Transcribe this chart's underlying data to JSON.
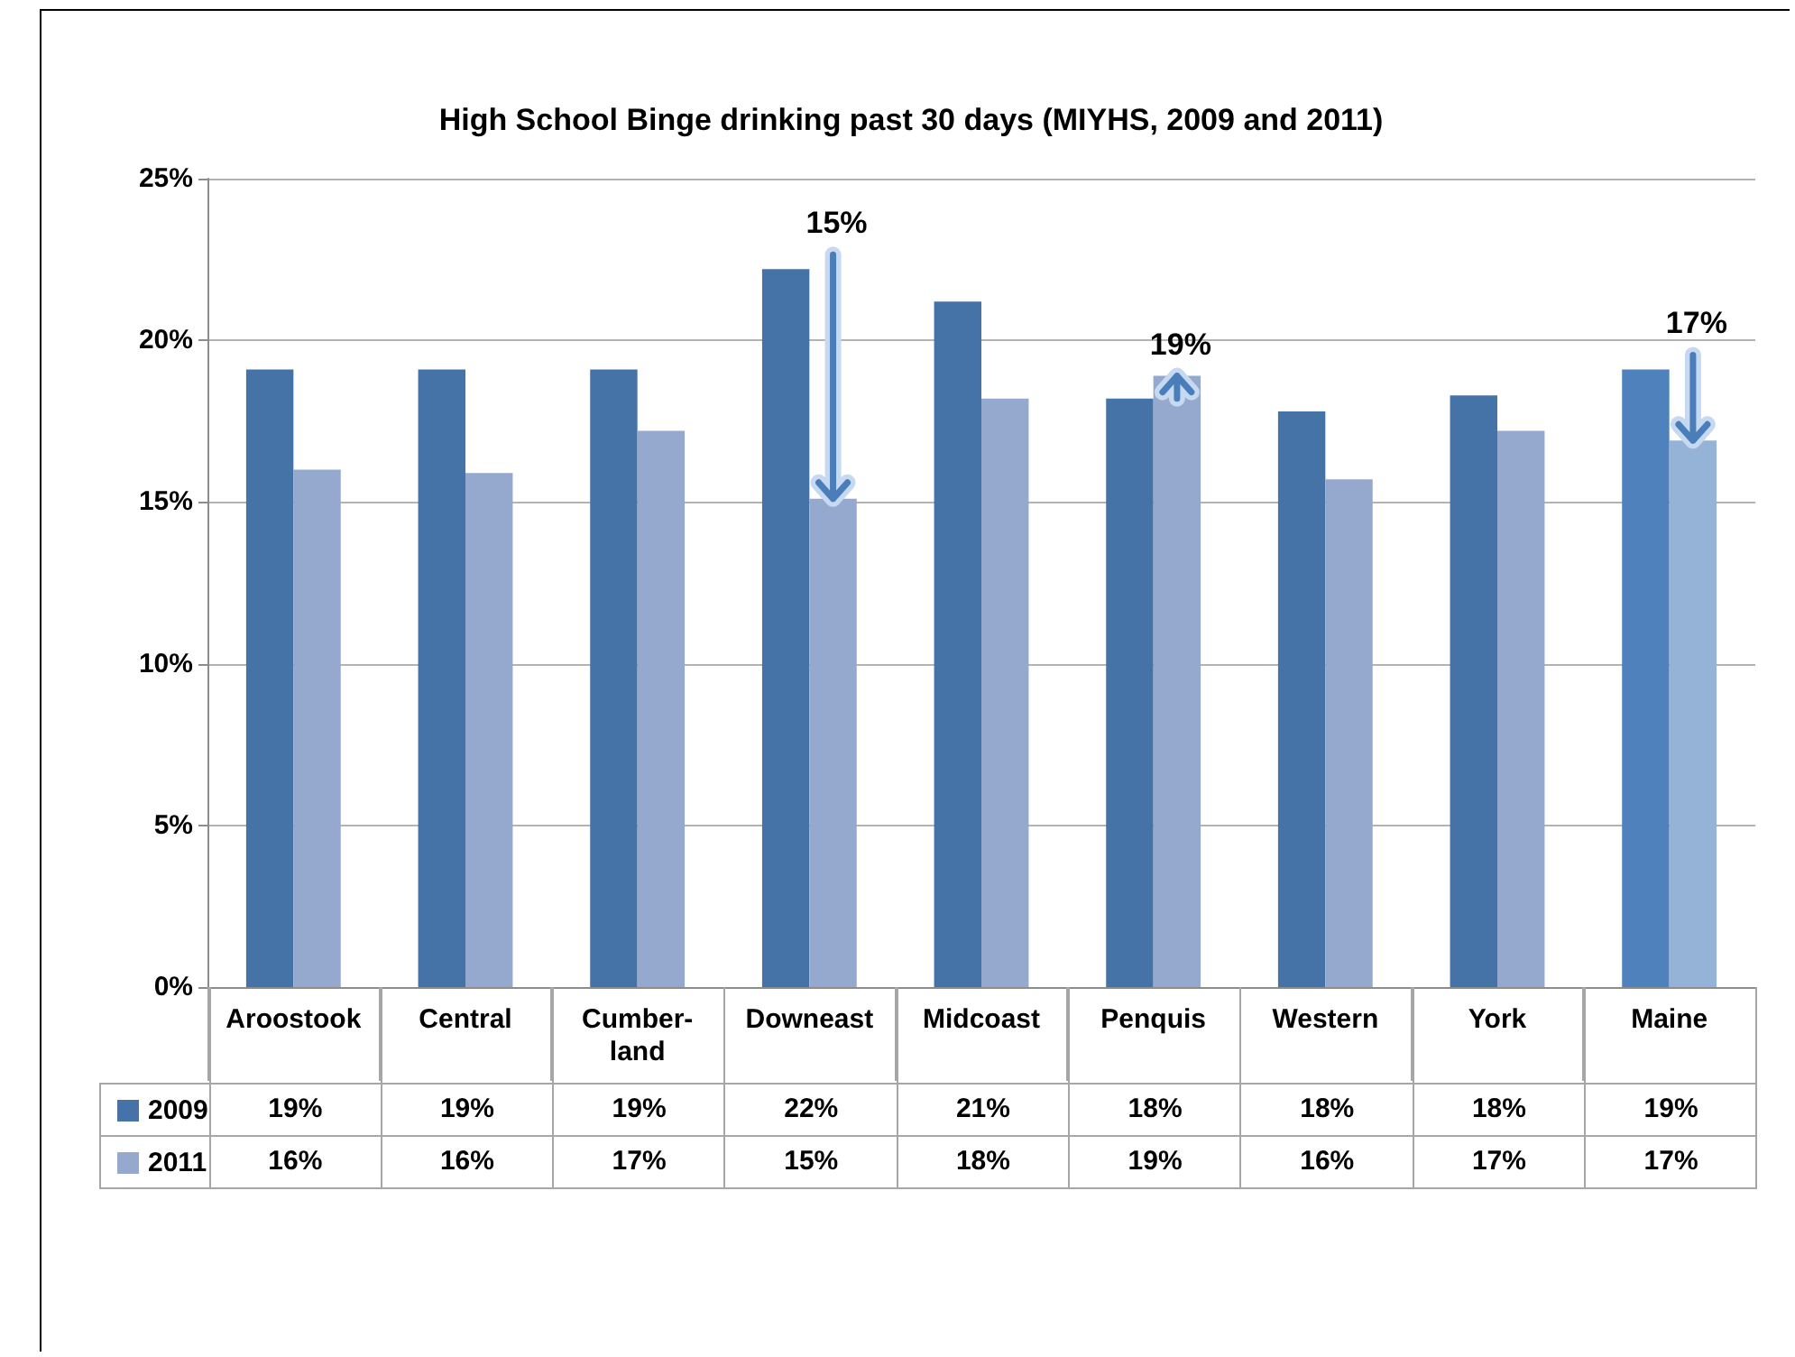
{
  "chart_data": {
    "type": "bar",
    "title": "High School Binge drinking past 30 days (MIYHS, 2009 and 2011)",
    "categories": [
      "Aroostook",
      "Central",
      "Cumber-land",
      "Downeast",
      "Midcoast",
      "Penquis",
      "Western",
      "York",
      "Maine"
    ],
    "series": [
      {
        "name": "2009",
        "color": "#4572a7",
        "colors": [
          "#4572a7",
          "#4572a7",
          "#4572a7",
          "#4572a7",
          "#4572a7",
          "#4572a7",
          "#4572a7",
          "#4572a7",
          "#4f81bd"
        ],
        "values": [
          19.1,
          19.1,
          19.1,
          22.2,
          21.2,
          18.2,
          17.8,
          18.3,
          19.1
        ],
        "value_labels": [
          "19%",
          "19%",
          "19%",
          "22%",
          "21%",
          "18%",
          "18%",
          "18%",
          "19%"
        ]
      },
      {
        "name": "2011",
        "color": "#95a9cf",
        "colors": [
          "#95a9cf",
          "#95a9cf",
          "#95a9cf",
          "#95a9cf",
          "#95a9cf",
          "#95a9cf",
          "#95a9cf",
          "#95a9cf",
          "#95b3d7"
        ],
        "values": [
          16.0,
          15.9,
          17.2,
          15.1,
          18.2,
          18.9,
          15.7,
          17.2,
          16.9
        ],
        "value_labels": [
          "16%",
          "16%",
          "17%",
          "15%",
          "18%",
          "19%",
          "16%",
          "17%",
          "17%"
        ]
      }
    ],
    "ylim": [
      0,
      25
    ],
    "yticks": [
      {
        "value": 0,
        "label": "0%"
      },
      {
        "value": 5,
        "label": "5%"
      },
      {
        "value": 10,
        "label": "10%"
      },
      {
        "value": 15,
        "label": "15%"
      },
      {
        "value": 20,
        "label": "20%"
      },
      {
        "value": 25,
        "label": "25%"
      }
    ],
    "grid": "y",
    "legend": "bottom",
    "annotations": [
      {
        "text": "15%",
        "x": "Downeast",
        "y": 22.2
      },
      {
        "text": "19%",
        "x": "Penquis",
        "y": 18.9
      },
      {
        "text": "17%",
        "x": "Maine",
        "y": 19.1
      }
    ]
  }
}
